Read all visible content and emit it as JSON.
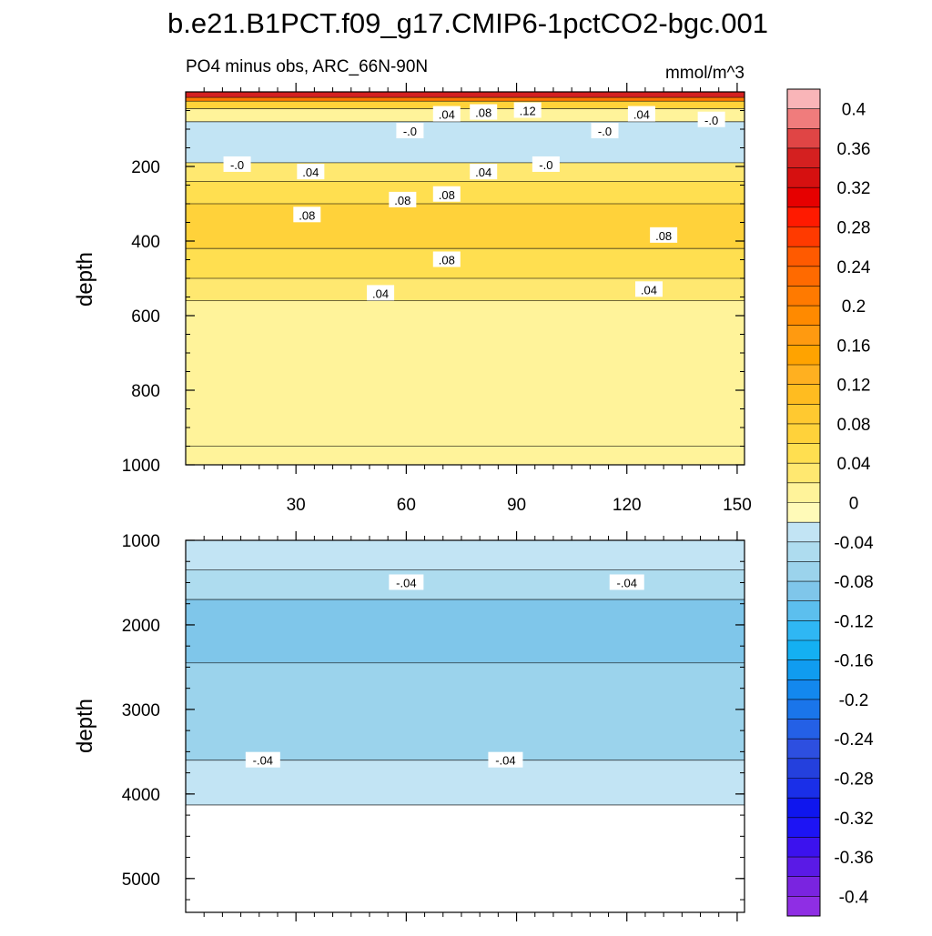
{
  "title": "b.e21.B1PCT.f09_g17.CMIP6-1pctCO2-bgc.001",
  "chart_data": {
    "type": "heatmap",
    "subtitle_left": "PO4 minus obs, ARC_66N-90N",
    "subtitle_right": "mmol/m^3",
    "x_axis": {
      "ticks": [
        30,
        60,
        90,
        120,
        150
      ],
      "xlim": [
        0,
        152
      ]
    },
    "panels": [
      {
        "id": "upper",
        "ylabel": "depth",
        "ylim": [
          0,
          1000
        ],
        "yticks": [
          200,
          400,
          600,
          800,
          1000
        ],
        "bands": [
          {
            "from": 0,
            "to": 15,
            "value": 0.36
          },
          {
            "from": 15,
            "to": 25,
            "value": 0.2
          },
          {
            "from": 25,
            "to": 45,
            "value": 0.08
          },
          {
            "from": 45,
            "to": 80,
            "value": 0.02
          },
          {
            "from": 80,
            "to": 190,
            "value": -0.02
          },
          {
            "from": 190,
            "to": 240,
            "value": 0.04
          },
          {
            "from": 240,
            "to": 300,
            "value": 0.06
          },
          {
            "from": 300,
            "to": 420,
            "value": 0.08
          },
          {
            "from": 420,
            "to": 500,
            "value": 0.06
          },
          {
            "from": 500,
            "to": 560,
            "value": 0.04
          },
          {
            "from": 560,
            "to": 950,
            "value": 0.02
          },
          {
            "from": 950,
            "to": 1000,
            "value": 0.01
          }
        ],
        "contour_labels": [
          {
            "text": ".04",
            "x": 71,
            "depth": 60
          },
          {
            "text": ".08",
            "x": 81,
            "depth": 55
          },
          {
            "text": ".12",
            "x": 93,
            "depth": 50
          },
          {
            "text": "-.0",
            "x": 61,
            "depth": 105
          },
          {
            "text": ".04",
            "x": 124,
            "depth": 60
          },
          {
            "text": "-.0",
            "x": 114,
            "depth": 105
          },
          {
            "text": "-.0",
            "x": 143,
            "depth": 75
          },
          {
            "text": "-.0",
            "x": 14,
            "depth": 195
          },
          {
            "text": ".04",
            "x": 34,
            "depth": 215
          },
          {
            "text": ".04",
            "x": 81,
            "depth": 215
          },
          {
            "text": "-.0",
            "x": 98,
            "depth": 195
          },
          {
            "text": ".08",
            "x": 59,
            "depth": 290
          },
          {
            "text": ".08",
            "x": 71,
            "depth": 275
          },
          {
            "text": ".08",
            "x": 33,
            "depth": 330
          },
          {
            "text": ".08",
            "x": 130,
            "depth": 385
          },
          {
            "text": ".08",
            "x": 71,
            "depth": 450
          },
          {
            "text": ".04",
            "x": 53,
            "depth": 540
          },
          {
            "text": ".04",
            "x": 126,
            "depth": 530
          }
        ]
      },
      {
        "id": "lower",
        "ylabel": "depth",
        "ylim": [
          1000,
          5400
        ],
        "yticks": [
          1000,
          2000,
          3000,
          4000,
          5000
        ],
        "bands": [
          {
            "from": 1000,
            "to": 1350,
            "value": -0.02
          },
          {
            "from": 1350,
            "to": 1700,
            "value": -0.05
          },
          {
            "from": 1700,
            "to": 2450,
            "value": -0.08
          },
          {
            "from": 2450,
            "to": 3600,
            "value": -0.06
          },
          {
            "from": 3600,
            "to": 4130,
            "value": -0.03
          }
        ],
        "contour_labels": [
          {
            "text": "-.04",
            "x": 60,
            "depth": 1500
          },
          {
            "text": "-.04",
            "x": 120,
            "depth": 1500
          },
          {
            "text": "-.04",
            "x": 21,
            "depth": 3600
          },
          {
            "text": "-.04",
            "x": 87,
            "depth": 3600
          }
        ]
      }
    ],
    "colorbar": {
      "min": -0.42,
      "max": 0.42,
      "levels": [
        0.4,
        0.36,
        0.32,
        0.28,
        0.24,
        0.2,
        0.16,
        0.12,
        0.08,
        0.04,
        0,
        -0.04,
        -0.08,
        -0.12,
        -0.16,
        -0.2,
        -0.24,
        -0.28,
        -0.32,
        -0.36,
        -0.4
      ],
      "labels": [
        "0.4",
        "0.36",
        "0.32",
        "0.28",
        "0.24",
        "0.2",
        "0.16",
        "0.12",
        "0.08",
        "0.04",
        "0",
        "-0.04",
        "-0.08",
        "-0.12",
        "-0.16",
        "-0.2",
        "-0.24",
        "-0.28",
        "-0.32",
        "-0.36",
        "-0.4"
      ],
      "colors": [
        "#f9b5b8",
        "#f07c7c",
        "#e04545",
        "#d42020",
        "#d61010",
        "#e60000",
        "#ff1a00",
        "#ff3a00",
        "#ff5a00",
        "#ff6a00",
        "#ff7a00",
        "#ff8a00",
        "#ff9a10",
        "#ffa300",
        "#ffb020",
        "#ffbc20",
        "#ffc930",
        "#ffd23a",
        "#ffdf50",
        "#ffe870",
        "#fff39a",
        "#fffab8",
        "#c2e4f4",
        "#aedcef",
        "#9bd3ec",
        "#7fc6ea",
        "#5cbfee",
        "#2fb7f4",
        "#14b0f2",
        "#109cf0",
        "#1388ee",
        "#1a75ea",
        "#2460e6",
        "#2d4fe0",
        "#2440dd",
        "#1a2fe8",
        "#0f16ee",
        "#1d14f4",
        "#3c12ee",
        "#5a1ae6",
        "#7a24e0",
        "#8f2ee4"
      ]
    }
  }
}
